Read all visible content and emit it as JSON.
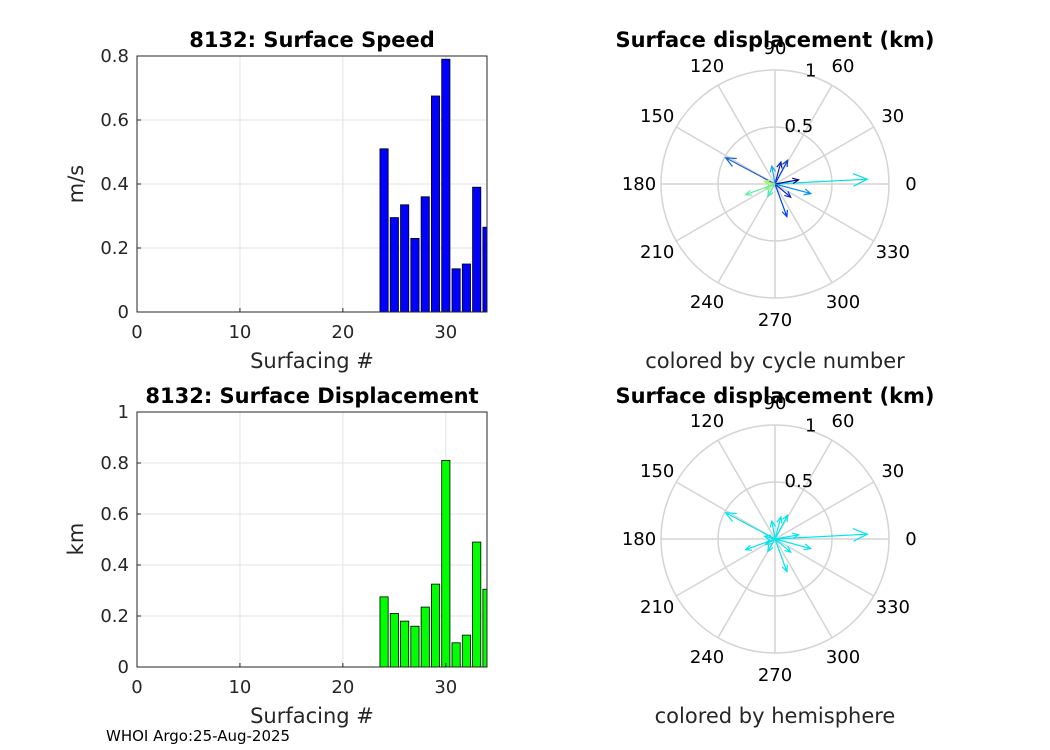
{
  "footer": "WHOI Argo:25-Aug-2025",
  "chart_data": [
    {
      "type": "bar",
      "title": "8132: Surface Speed",
      "xlabel": "Surfacing #",
      "ylabel": "m/s",
      "xlim": [
        0,
        34
      ],
      "ylim": [
        0,
        0.8
      ],
      "xticks": [
        "0",
        "10",
        "20",
        "30"
      ],
      "yticks": [
        "0",
        "0.2",
        "0.4",
        "0.6",
        "0.8"
      ],
      "grid": true,
      "color": "#0000ff",
      "x": [
        24,
        25,
        26,
        27,
        28,
        29,
        30,
        31,
        32,
        33,
        34
      ],
      "values": [
        0.51,
        0.295,
        0.335,
        0.23,
        0.36,
        0.675,
        0.79,
        0.135,
        0.15,
        0.39,
        0.265
      ]
    },
    {
      "type": "bar",
      "title": "8132: Surface Displacement",
      "xlabel": "Surfacing #",
      "ylabel": "km",
      "xlim": [
        0,
        34
      ],
      "ylim": [
        0,
        1
      ],
      "xticks": [
        "0",
        "10",
        "20",
        "30"
      ],
      "yticks": [
        "0",
        "0.2",
        "0.4",
        "0.6",
        "0.8",
        "1"
      ],
      "grid": true,
      "color": "#00ff00",
      "x": [
        24,
        25,
        26,
        27,
        28,
        29,
        30,
        31,
        32,
        33,
        34
      ],
      "values": [
        0.275,
        0.21,
        0.18,
        0.16,
        0.235,
        0.325,
        0.81,
        0.095,
        0.125,
        0.49,
        0.305
      ]
    },
    {
      "type": "polar-compass",
      "title": "Surface displacement (km)",
      "xlabel": "colored by cycle number",
      "rlim": [
        0,
        1
      ],
      "rticks": [
        "0.5",
        "1"
      ],
      "angle_ticks": [
        "0",
        "30",
        "60",
        "90",
        "120",
        "150",
        "180",
        "210",
        "240",
        "270",
        "300",
        "330"
      ],
      "arrows": [
        {
          "angle_deg": 3,
          "length_km": 0.81,
          "color": "#00dfe0"
        },
        {
          "angle_deg": 152,
          "length_km": 0.49,
          "color": "#1560d6"
        },
        {
          "angle_deg": 75,
          "length_km": 0.2,
          "color": "#0d1fb0"
        },
        {
          "angle_deg": 62,
          "length_km": 0.235,
          "color": "#0b3fd0"
        },
        {
          "angle_deg": 100,
          "length_km": 0.16,
          "color": "#18a8f0"
        },
        {
          "angle_deg": 10,
          "length_km": 0.21,
          "color": "#000090"
        },
        {
          "angle_deg": 290,
          "length_km": 0.305,
          "color": "#0044ee"
        },
        {
          "angle_deg": 320,
          "length_km": 0.18,
          "color": "#0a2ad0"
        },
        {
          "angle_deg": 240,
          "length_km": 0.125,
          "color": "#40e8b0"
        },
        {
          "angle_deg": 210,
          "length_km": 0.095,
          "color": "#90f080"
        },
        {
          "angle_deg": 200,
          "length_km": 0.275,
          "color": "#60f0a0"
        },
        {
          "angle_deg": 345,
          "length_km": 0.325,
          "color": "#0090f0"
        },
        {
          "angle_deg": 165,
          "length_km": 0.095,
          "color": "#a0f060"
        }
      ]
    },
    {
      "type": "polar-compass",
      "title": "Surface displacement (km)",
      "xlabel": "colored by hemisphere",
      "rlim": [
        0,
        1
      ],
      "rticks": [
        "0.5",
        "1"
      ],
      "angle_ticks": [
        "0",
        "30",
        "60",
        "90",
        "120",
        "150",
        "180",
        "210",
        "240",
        "270",
        "300",
        "330"
      ],
      "arrows": [
        {
          "angle_deg": 3,
          "length_km": 0.81,
          "color": "#00e5ee"
        },
        {
          "angle_deg": 152,
          "length_km": 0.49,
          "color": "#00e5ee"
        },
        {
          "angle_deg": 75,
          "length_km": 0.2,
          "color": "#00e5ee"
        },
        {
          "angle_deg": 62,
          "length_km": 0.235,
          "color": "#00e5ee"
        },
        {
          "angle_deg": 100,
          "length_km": 0.16,
          "color": "#00e5ee"
        },
        {
          "angle_deg": 10,
          "length_km": 0.21,
          "color": "#00e5ee"
        },
        {
          "angle_deg": 290,
          "length_km": 0.305,
          "color": "#00e5ee"
        },
        {
          "angle_deg": 320,
          "length_km": 0.18,
          "color": "#00e5ee"
        },
        {
          "angle_deg": 240,
          "length_km": 0.125,
          "color": "#00e5ee"
        },
        {
          "angle_deg": 210,
          "length_km": 0.095,
          "color": "#00e5ee"
        },
        {
          "angle_deg": 200,
          "length_km": 0.275,
          "color": "#00e5ee"
        },
        {
          "angle_deg": 345,
          "length_km": 0.325,
          "color": "#00e5ee"
        },
        {
          "angle_deg": 165,
          "length_km": 0.095,
          "color": "#00e5ee"
        }
      ]
    }
  ]
}
